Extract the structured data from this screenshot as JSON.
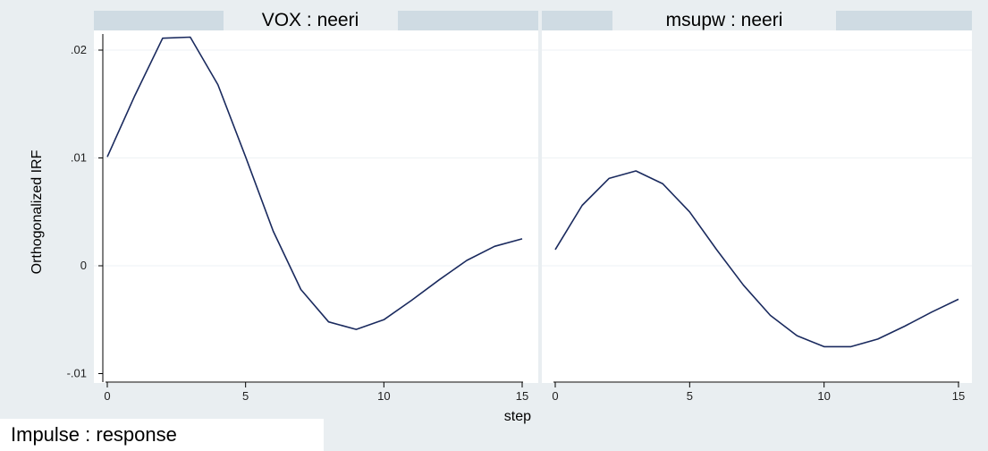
{
  "chart_data": {
    "type": "line",
    "y_axis_title": "Orthogonalized IRF",
    "x_axis_title": "step",
    "caption": "Impulse : response",
    "ylim": [
      -0.011,
      0.022
    ],
    "xlim": [
      0,
      15
    ],
    "y_ticks": [
      -0.01,
      0,
      0.01,
      0.02
    ],
    "y_tick_labels": [
      "-.01",
      "0",
      ".01",
      ".02"
    ],
    "x_ticks": [
      0,
      5,
      10,
      15
    ],
    "x_tick_labels": [
      "0",
      "5",
      "10",
      "15"
    ],
    "grid": true,
    "line_color": "#1a2a5e",
    "panels": [
      {
        "title": "VOX : neeri",
        "x": [
          0,
          1,
          2,
          3,
          4,
          5,
          6,
          7,
          8,
          9,
          10,
          11,
          12,
          13,
          14,
          15
        ],
        "y": [
          0.0101,
          0.0158,
          0.0211,
          0.0212,
          0.0168,
          0.0101,
          0.0032,
          -0.0022,
          -0.0052,
          -0.0059,
          -0.005,
          -0.0032,
          -0.0013,
          0.0005,
          0.0018,
          0.0025
        ]
      },
      {
        "title": "msupw : neeri",
        "x": [
          0,
          1,
          2,
          3,
          4,
          5,
          6,
          7,
          8,
          9,
          10,
          11,
          12,
          13,
          14,
          15
        ],
        "y": [
          0.0015,
          0.0056,
          0.0081,
          0.0088,
          0.0076,
          0.005,
          0.0015,
          -0.0018,
          -0.0046,
          -0.0065,
          -0.0075,
          -0.0075,
          -0.0068,
          -0.0056,
          -0.0043,
          -0.0031
        ]
      }
    ]
  }
}
